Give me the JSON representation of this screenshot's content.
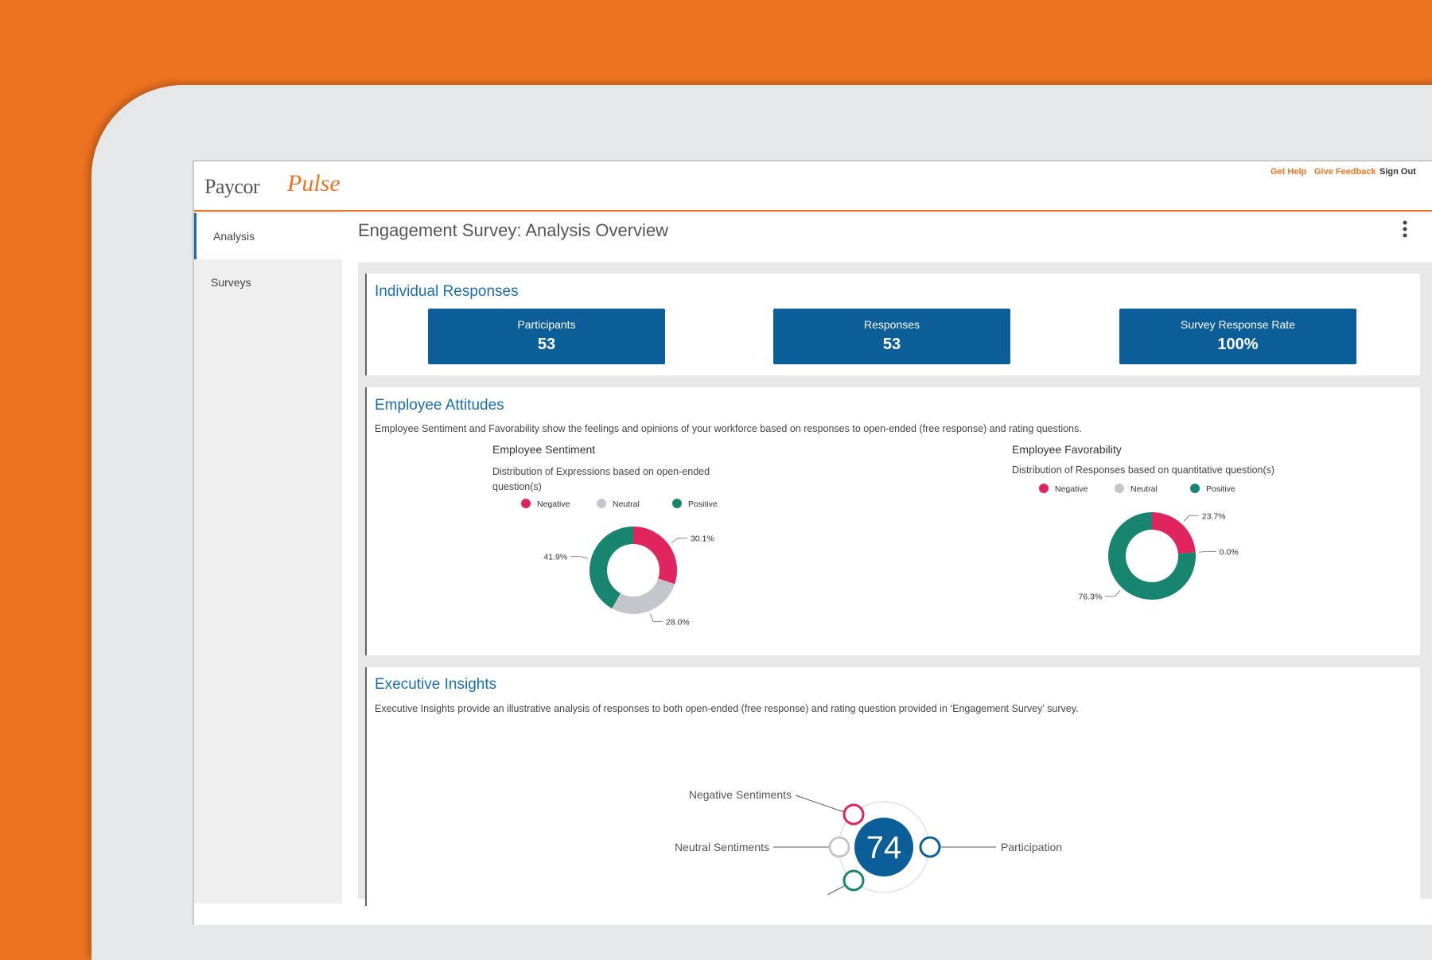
{
  "header": {
    "brand": "Paycor",
    "brand_script": "Pulse",
    "links": [
      "Get Help",
      "Give Feedback",
      "Sign Out"
    ]
  },
  "sidebar": {
    "items": [
      "Analysis",
      "Surveys"
    ]
  },
  "page": {
    "title": "Engagement Survey: Analysis Overview"
  },
  "individual_responses": {
    "title": "Individual Responses",
    "cards": [
      {
        "label": "Participants",
        "value": 53
      },
      {
        "label": "Responses",
        "value": 53
      },
      {
        "label": "Survey Response Rate",
        "value": 100,
        "value_label": "100%"
      }
    ]
  },
  "employee_attitudes": {
    "title": "Employee Attitudes",
    "description": "Employee Sentiment and Favorability show the feelings and opinions of your workforce based on responses to open-ended (free response) and rating questions.",
    "charts": [
      {
        "type": "donut",
        "title": "Employee Sentiment",
        "subtitle": "Distribution of Expressions based on open-ended question(s)",
        "categories": [
          "Negative",
          "Neutral",
          "Positive"
        ],
        "colors": [
          "#e0245e",
          "#c4c6cb",
          "#17856f"
        ],
        "values": [
          30.1,
          28.0,
          41.9
        ],
        "value_labels": [
          "30.1%",
          "28.0%",
          "41.9%"
        ]
      },
      {
        "type": "donut",
        "title": "Employee Favorability",
        "subtitle": "Distribution of Responses based on quantitative question(s)",
        "categories": [
          "Negative",
          "Neutral",
          "Positive"
        ],
        "colors": [
          "#e0245e",
          "#c4c6cb",
          "#17856f"
        ],
        "values": [
          23.7,
          0.0,
          76.3
        ],
        "value_labels": [
          "23.7%",
          "0.0%",
          "76.3%"
        ]
      }
    ]
  },
  "executive_insights": {
    "title": "Executive Insights",
    "description": "Executive Insights provide an illustrative analysis of responses to both open-ended (free response) and rating question provided in ‘Engagement Survey’ survey.",
    "score": 74,
    "labels": [
      "Negative Sentiments",
      "Neutral Sentiments",
      "Participation"
    ]
  }
}
